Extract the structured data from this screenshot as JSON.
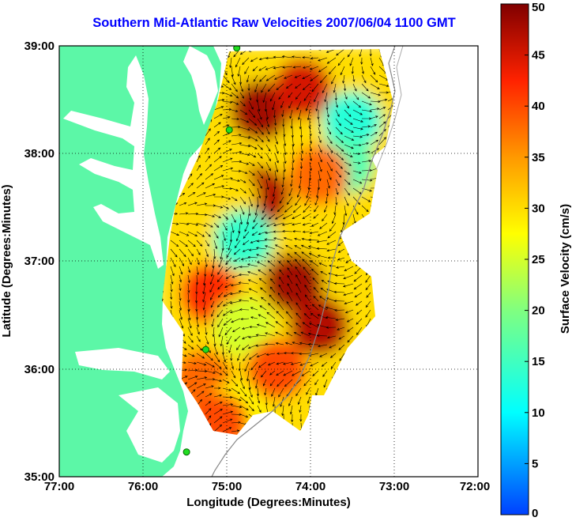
{
  "title": "Southern Mid-Atlantic Raw Velocities 2007/06/04 1100 GMT",
  "xlabel": "Longitude (Degrees:Minutes)",
  "ylabel": "Latitude (Degrees:Minutes)",
  "x_ticks": [
    "77:00",
    "76:00",
    "75:00",
    "74:00",
    "73:00",
    "72:00"
  ],
  "y_ticks": [
    "39:00",
    "38:00",
    "37:00",
    "36:00",
    "35:00"
  ],
  "colorbar": {
    "label": "Surface Velocity (cm/s)",
    "ticks": [
      "0",
      "5",
      "10",
      "15",
      "20",
      "25",
      "30",
      "35",
      "40",
      "45",
      "50"
    ],
    "min": 0,
    "max": 50
  },
  "colors": {
    "land": "#5cf7a7",
    "title": "#0000ff",
    "station_marker": "#22dd22"
  },
  "stations": [
    {
      "lon": -74.88,
      "lat": 38.98
    },
    {
      "lon": -74.97,
      "lat": 38.22
    },
    {
      "lon": -75.25,
      "lat": 36.18
    },
    {
      "lon": -75.48,
      "lat": 35.23
    }
  ],
  "chart_data": {
    "type": "heatmap",
    "title": "Southern Mid-Atlantic Raw Velocities 2007/06/04 1100 GMT",
    "xlabel": "Longitude (Degrees:Minutes)",
    "ylabel": "Latitude (Degrees:Minutes)",
    "xlim": [
      -77,
      -72
    ],
    "ylim": [
      35,
      39
    ],
    "value_label": "Surface Velocity (cm/s)",
    "value_range": [
      0,
      50
    ],
    "velocity_regions": [
      {
        "lon": -74.6,
        "lat": 38.4,
        "speed": 48
      },
      {
        "lon": -74.1,
        "lat": 38.6,
        "speed": 45
      },
      {
        "lon": -73.5,
        "lat": 38.3,
        "speed": 13
      },
      {
        "lon": -73.6,
        "lat": 37.9,
        "speed": 16
      },
      {
        "lon": -73.9,
        "lat": 37.8,
        "speed": 38
      },
      {
        "lon": -74.6,
        "lat": 37.6,
        "speed": 47
      },
      {
        "lon": -75.0,
        "lat": 37.6,
        "speed": 30
      },
      {
        "lon": -74.8,
        "lat": 37.2,
        "speed": 14
      },
      {
        "lon": -74.2,
        "lat": 36.8,
        "speed": 48
      },
      {
        "lon": -73.9,
        "lat": 36.4,
        "speed": 47
      },
      {
        "lon": -75.2,
        "lat": 36.7,
        "speed": 42
      },
      {
        "lon": -74.8,
        "lat": 36.4,
        "speed": 25
      },
      {
        "lon": -74.4,
        "lat": 36.0,
        "speed": 40
      },
      {
        "lon": -75.3,
        "lat": 35.9,
        "speed": 38
      },
      {
        "lon": -74.9,
        "lat": 35.6,
        "speed": 28
      },
      {
        "lon": -75.1,
        "lat": 35.5,
        "speed": 40
      }
    ]
  }
}
